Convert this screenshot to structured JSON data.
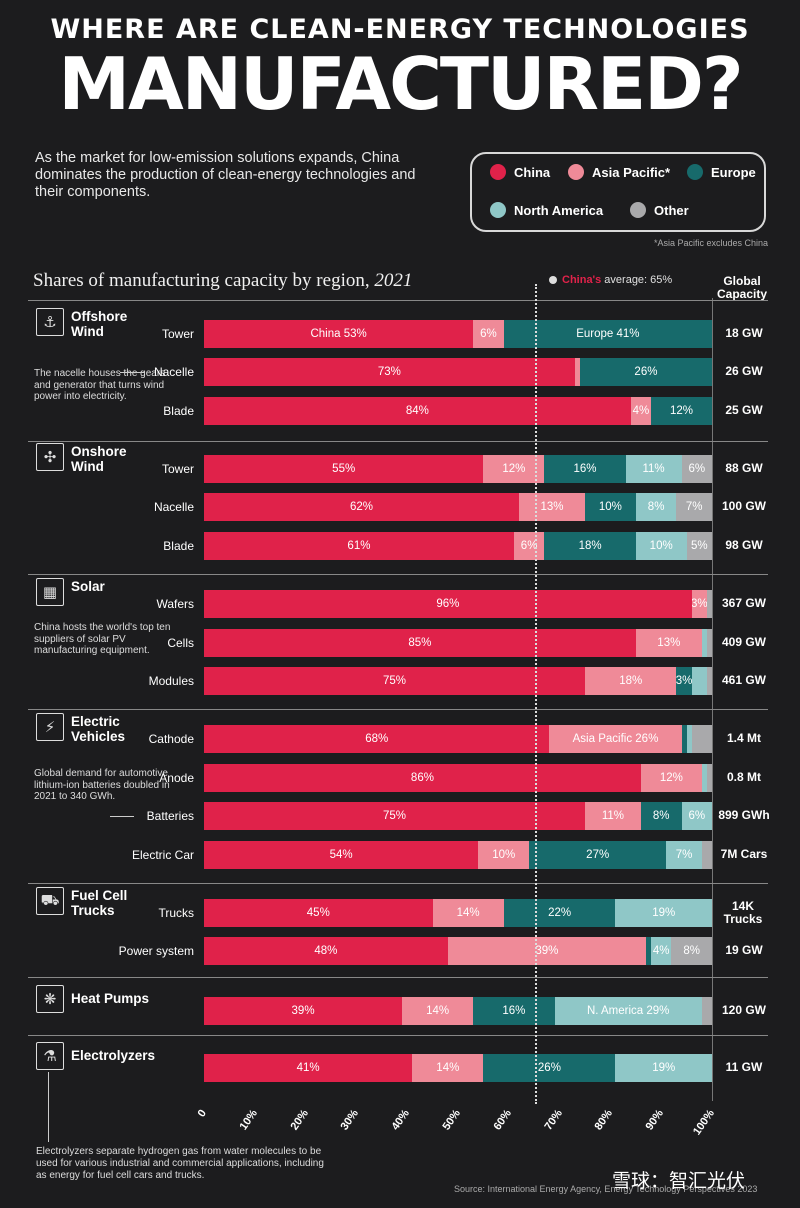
{
  "header": {
    "line1": "WHERE ARE CLEAN-ENERGY TECHNOLOGIES",
    "line2": "MANUFACTURED?",
    "subtitle": "As the market for low-emission solutions expands, China dominates the production of clean-energy technologies and their components."
  },
  "legend": {
    "items": [
      {
        "label": "China",
        "color": "#e0224a"
      },
      {
        "label": "Asia Pacific*",
        "color": "#ef8a98"
      },
      {
        "label": "Europe",
        "color": "#176a6b"
      },
      {
        "label": "North America",
        "color": "#8fc7c7"
      },
      {
        "label": "Other",
        "color": "#a9a9ab"
      }
    ],
    "note": "*Asia Pacific excludes China"
  },
  "chart_title_main": "Shares of manufacturing capacity by region,",
  "chart_title_year": "2021",
  "avg_label_china": "China's",
  "avg_label_rest": "average: 65%",
  "capacity_header": "Global Capacity",
  "categories": [
    {
      "name": "Offshore Wind",
      "icon": "wind-turbine-offshore-icon",
      "glyph": "⚓",
      "note": "The nacelle houses the gears and generator that turns wind power into electricity."
    },
    {
      "name": "Onshore Wind",
      "icon": "wind-turbine-icon",
      "glyph": "✣",
      "note": ""
    },
    {
      "name": "Solar",
      "icon": "solar-panel-icon",
      "glyph": "▦",
      "note": "China hosts the world's top ten suppliers of solar PV manufacturing equipment."
    },
    {
      "name": "Electric Vehicles",
      "icon": "ev-charger-icon",
      "glyph": "⚡",
      "note": "Global demand for automotive lithium-ion batteries doubled in 2021 to 340 GWh."
    },
    {
      "name": "Fuel Cell Trucks",
      "icon": "truck-icon",
      "glyph": "⛟",
      "note": ""
    },
    {
      "name": "Heat Pumps",
      "icon": "heat-pump-icon",
      "glyph": "❋",
      "note": ""
    },
    {
      "name": "Electrolyzers",
      "icon": "electrolyzer-icon",
      "glyph": "⚗",
      "note": "Electrolyzers separate hydrogen gas from water molecules to be used for various industrial and commercial applications, including as energy for fuel cell cars and trucks."
    }
  ],
  "chart_data": {
    "type": "bar",
    "orientation": "horizontal-stacked-100",
    "title": "Shares of manufacturing capacity by region, 2021",
    "series_order": [
      "China",
      "Asia Pacific",
      "Europe",
      "North America",
      "Other"
    ],
    "x_ticks": [
      "0",
      "10%",
      "20%",
      "30%",
      "40%",
      "50%",
      "60%",
      "70%",
      "80%",
      "90%",
      "100%"
    ],
    "xlim": [
      0,
      100
    ],
    "reference_line": {
      "label": "China's average: 65%",
      "value": 65
    },
    "rows": [
      {
        "category": "Offshore Wind",
        "component": "Tower",
        "capacity": "18 GW",
        "values": [
          53,
          6,
          41,
          0,
          0
        ],
        "labels": [
          "China 53%",
          "6%",
          "Europe 41%",
          "",
          ""
        ]
      },
      {
        "category": "Offshore Wind",
        "component": "Nacelle",
        "capacity": "26 GW",
        "values": [
          73,
          1,
          26,
          0,
          0
        ],
        "labels": [
          "73%",
          "",
          "26%",
          "",
          ""
        ]
      },
      {
        "category": "Offshore Wind",
        "component": "Blade",
        "capacity": "25 GW",
        "values": [
          84,
          4,
          12,
          0,
          0
        ],
        "labels": [
          "84%",
          "4%",
          "12%",
          "",
          ""
        ]
      },
      {
        "category": "Onshore Wind",
        "component": "Tower",
        "capacity": "88 GW",
        "values": [
          55,
          12,
          16,
          11,
          6
        ],
        "labels": [
          "55%",
          "12%",
          "16%",
          "11%",
          "6%"
        ]
      },
      {
        "category": "Onshore Wind",
        "component": "Nacelle",
        "capacity": "100 GW",
        "values": [
          62,
          13,
          10,
          8,
          7
        ],
        "labels": [
          "62%",
          "13%",
          "10%",
          "8%",
          "7%"
        ]
      },
      {
        "category": "Onshore Wind",
        "component": "Blade",
        "capacity": "98 GW",
        "values": [
          61,
          6,
          18,
          10,
          5
        ],
        "labels": [
          "61%",
          "6%",
          "18%",
          "10%",
          "5%"
        ]
      },
      {
        "category": "Solar",
        "component": "Wafers",
        "capacity": "367 GW",
        "values": [
          96,
          3,
          0,
          0,
          1
        ],
        "labels": [
          "96%",
          "3%",
          "",
          "",
          ""
        ]
      },
      {
        "category": "Solar",
        "component": "Cells",
        "capacity": "409 GW",
        "values": [
          85,
          13,
          0,
          1,
          1
        ],
        "labels": [
          "85%",
          "13%",
          "",
          "",
          ""
        ]
      },
      {
        "category": "Solar",
        "component": "Modules",
        "capacity": "461 GW",
        "values": [
          75,
          18,
          3,
          3,
          1
        ],
        "labels": [
          "75%",
          "18%",
          "3%",
          "",
          ""
        ]
      },
      {
        "category": "Electric Vehicles",
        "component": "Cathode",
        "capacity": "1.4 Mt",
        "values": [
          68,
          26,
          1,
          1,
          4
        ],
        "labels": [
          "68%",
          "Asia Pacific 26%",
          "",
          "",
          ""
        ]
      },
      {
        "category": "Electric Vehicles",
        "component": "Anode",
        "capacity": "0.8 Mt",
        "values": [
          86,
          12,
          0,
          1,
          1
        ],
        "labels": [
          "86%",
          "12%",
          "",
          "",
          ""
        ]
      },
      {
        "category": "Electric Vehicles",
        "component": "Batteries",
        "capacity": "899 GWh",
        "values": [
          75,
          11,
          8,
          6,
          0
        ],
        "labels": [
          "75%",
          "11%",
          "8%",
          "6%",
          ""
        ]
      },
      {
        "category": "Electric Vehicles",
        "component": "Electric Car",
        "capacity": "7M Cars",
        "values": [
          54,
          10,
          27,
          7,
          2
        ],
        "labels": [
          "54%",
          "10%",
          "27%",
          "7%",
          ""
        ]
      },
      {
        "category": "Fuel Cell Trucks",
        "component": "Trucks",
        "capacity": "14K Trucks",
        "values": [
          45,
          14,
          22,
          19,
          0
        ],
        "labels": [
          "45%",
          "14%",
          "22%",
          "19%",
          ""
        ]
      },
      {
        "category": "Fuel Cell Trucks",
        "component": "Power system",
        "capacity": "19 GW",
        "values": [
          48,
          39,
          1,
          4,
          8
        ],
        "labels": [
          "48%",
          "39%",
          "",
          "4%",
          "8%"
        ]
      },
      {
        "category": "Heat Pumps",
        "component": "",
        "capacity": "120 GW",
        "values": [
          39,
          14,
          16,
          29,
          2
        ],
        "labels": [
          "39%",
          "14%",
          "16%",
          "N. America 29%",
          ""
        ]
      },
      {
        "category": "Electrolyzers",
        "component": "",
        "capacity": "11 GW",
        "values": [
          41,
          14,
          26,
          19,
          0
        ],
        "labels": [
          "41%",
          "14%",
          "26%",
          "19%",
          ""
        ]
      }
    ]
  },
  "source": "Source: International Energy Agency, Energy Technology Perspectives 2023",
  "watermark": "雪球：智汇光伏"
}
